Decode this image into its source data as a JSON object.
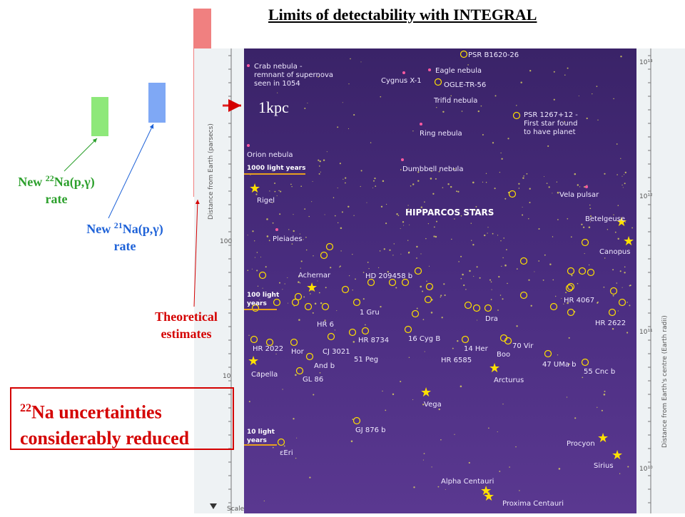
{
  "title": "Limits of detectability with INTEGRAL",
  "labels": {
    "na22_rate": {
      "prefix": "New ",
      "sup": "22",
      "suffix": "Na(p,γ)",
      "line2": "rate"
    },
    "na21_rate": {
      "prefix": "New ",
      "sup": "21",
      "suffix": "Na(p,γ)",
      "line2": "rate"
    },
    "theoretical": {
      "line1": "Theoretical",
      "line2": "estimates"
    },
    "kpc": "1kpc"
  },
  "callout": {
    "sup": "22",
    "line1": "Na uncertainties",
    "line2": "considerably reduced"
  },
  "colors": {
    "green_bar": "#8ee87a",
    "blue_bar": "#7fa8f5",
    "red_bar": "#f08080",
    "map_bg": "#4a2a7a",
    "star": "#ffe000"
  },
  "map": {
    "hipparcos_title": "HIPPARCOS STARS",
    "left_axis_label": "Distance from Earth (parsecs)",
    "right_axis_label": "Distance from Earth's centre (Earth radii)",
    "left_ticks": [
      "100",
      "10"
    ],
    "right_ticks": [
      "10¹³",
      "10¹²",
      "10¹¹",
      "10¹⁰"
    ],
    "scale_label": "Scale",
    "light_year_markers": [
      "1000 light years",
      "100 light years",
      "10 light years"
    ],
    "objects": [
      "PSR B1620-26",
      "Crab nebula -",
      "remnant of supernova",
      "seen in 1054",
      "Cygnus X-1",
      "Eagle nebula",
      "OGLE-TR-56",
      "Trifid nebula",
      "PSR 1267+12 -",
      "First star found",
      "to have planet",
      "Ring nebula",
      "Orion nebula",
      "Dumbbell nebula",
      "Rigel",
      "Vela pulsar",
      "Betelgeuse",
      "Pleiades",
      "Canopus",
      "Achernar",
      "HD 209458 b",
      "HR 4067",
      "1 Gru",
      "Dra",
      "HR 6",
      "HR 2622",
      "HR 8734",
      "16 Cyg B",
      "70 Vir",
      "HR 2022",
      "Hor",
      "CJ 3021",
      "14 Her",
      "Boo",
      "And b",
      "51 Peg",
      "HR 6585",
      "47 UMa b",
      "55 Cnc b",
      "Capella",
      "GL 86",
      "Arcturus",
      "Vega",
      "GJ 876 b",
      "Procyon",
      "εEri",
      "Sirius",
      "Alpha Centauri",
      "Proxima Centauri"
    ]
  }
}
